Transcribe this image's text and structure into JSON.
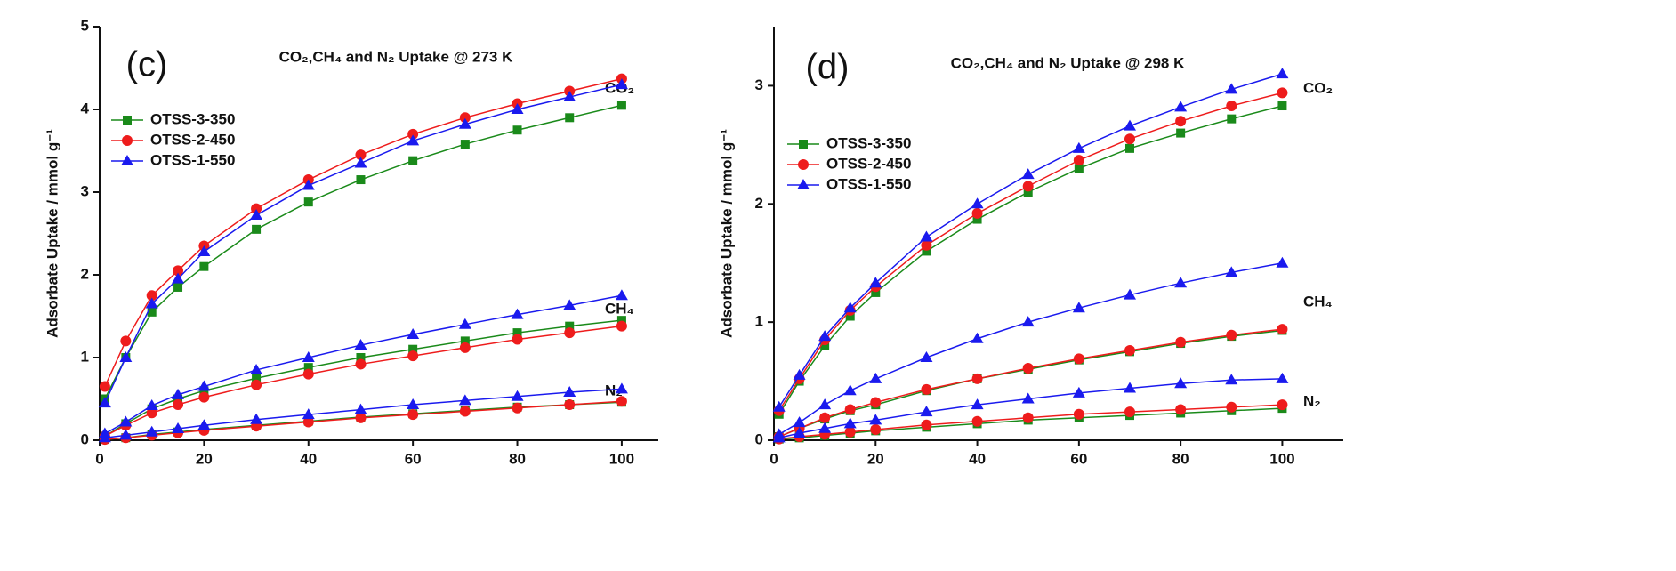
{
  "chart_data": [
    {
      "type": "line",
      "panel_label": "(c)",
      "title": "CO₂,CH₄ and N₂ Uptake @ 273 K",
      "ylabel": "Adsorbate Uptake / mmol g⁻¹",
      "gas_labels": [
        "CO₂",
        "CH₄",
        "N₂"
      ],
      "x": [
        1,
        5,
        10,
        15,
        20,
        30,
        40,
        50,
        60,
        70,
        80,
        90,
        100
      ],
      "xlim": [
        0,
        107
      ],
      "ylim": [
        0,
        5
      ],
      "xticks": [
        0,
        20,
        40,
        60,
        80,
        100
      ],
      "yticks": [
        0,
        1,
        2,
        3,
        4,
        5
      ],
      "series": [
        {
          "name": "OTSS-3-350",
          "color": "#1a8a1a",
          "marker": "square",
          "co2": [
            0.5,
            1.0,
            1.55,
            1.85,
            2.1,
            2.55,
            2.88,
            3.15,
            3.38,
            3.58,
            3.75,
            3.9,
            4.05
          ],
          "ch4": [
            0.05,
            0.2,
            0.38,
            0.5,
            0.6,
            0.75,
            0.88,
            1.0,
            1.1,
            1.2,
            1.3,
            1.38,
            1.45
          ],
          "n2": [
            0.01,
            0.03,
            0.07,
            0.1,
            0.13,
            0.18,
            0.23,
            0.28,
            0.32,
            0.36,
            0.4,
            0.43,
            0.46
          ]
        },
        {
          "name": "OTSS-2-450",
          "color": "#ee1c1c",
          "marker": "circle",
          "co2": [
            0.65,
            1.2,
            1.75,
            2.05,
            2.35,
            2.8,
            3.15,
            3.45,
            3.7,
            3.9,
            4.07,
            4.22,
            4.37
          ],
          "ch4": [
            0.05,
            0.18,
            0.33,
            0.43,
            0.52,
            0.67,
            0.8,
            0.92,
            1.02,
            1.12,
            1.22,
            1.3,
            1.38
          ],
          "n2": [
            0.01,
            0.03,
            0.06,
            0.09,
            0.12,
            0.17,
            0.22,
            0.27,
            0.31,
            0.35,
            0.39,
            0.43,
            0.47
          ]
        },
        {
          "name": "OTSS-1-550",
          "color": "#1a1aee",
          "marker": "triangle",
          "co2": [
            0.45,
            1.0,
            1.65,
            1.95,
            2.28,
            2.72,
            3.08,
            3.35,
            3.62,
            3.82,
            4.0,
            4.15,
            4.3
          ],
          "ch4": [
            0.08,
            0.22,
            0.42,
            0.55,
            0.65,
            0.85,
            1.0,
            1.15,
            1.28,
            1.4,
            1.52,
            1.63,
            1.75
          ],
          "n2": [
            0.03,
            0.06,
            0.1,
            0.14,
            0.18,
            0.25,
            0.31,
            0.37,
            0.43,
            0.48,
            0.53,
            0.58,
            0.62
          ]
        }
      ]
    },
    {
      "type": "line",
      "panel_label": "(d)",
      "title": "CO₂,CH₄ and N₂ Uptake @ 298 K",
      "ylabel": "Adsorbate Uptake / mmol g⁻¹",
      "gas_labels": [
        "CO₂",
        "CH₄",
        "N₂"
      ],
      "x": [
        1,
        5,
        10,
        15,
        20,
        30,
        40,
        50,
        60,
        70,
        80,
        90,
        100
      ],
      "xlim": [
        0,
        112
      ],
      "ylim": [
        0,
        3.5
      ],
      "xticks": [
        0,
        20,
        40,
        60,
        80,
        100
      ],
      "yticks": [
        0,
        1,
        2,
        3
      ],
      "series": [
        {
          "name": "OTSS-3-350",
          "color": "#1a8a1a",
          "marker": "square",
          "co2": [
            0.22,
            0.5,
            0.8,
            1.05,
            1.25,
            1.6,
            1.87,
            2.1,
            2.3,
            2.47,
            2.6,
            2.72,
            2.83
          ],
          "ch4": [
            0.03,
            0.1,
            0.18,
            0.25,
            0.3,
            0.42,
            0.52,
            0.6,
            0.68,
            0.75,
            0.82,
            0.88,
            0.93
          ],
          "n2": [
            0.01,
            0.02,
            0.04,
            0.06,
            0.08,
            0.11,
            0.14,
            0.17,
            0.19,
            0.21,
            0.23,
            0.25,
            0.27
          ]
        },
        {
          "name": "OTSS-2-450",
          "color": "#ee1c1c",
          "marker": "circle",
          "co2": [
            0.25,
            0.52,
            0.85,
            1.1,
            1.3,
            1.65,
            1.92,
            2.15,
            2.37,
            2.55,
            2.7,
            2.83,
            2.94
          ],
          "ch4": [
            0.03,
            0.1,
            0.19,
            0.26,
            0.32,
            0.43,
            0.52,
            0.61,
            0.69,
            0.76,
            0.83,
            0.89,
            0.94
          ],
          "n2": [
            0.01,
            0.03,
            0.05,
            0.07,
            0.09,
            0.13,
            0.16,
            0.19,
            0.22,
            0.24,
            0.26,
            0.28,
            0.3
          ]
        },
        {
          "name": "OTSS-1-550",
          "color": "#1a1aee",
          "marker": "triangle",
          "co2": [
            0.28,
            0.55,
            0.88,
            1.12,
            1.33,
            1.72,
            2.0,
            2.25,
            2.47,
            2.66,
            2.82,
            2.97,
            3.1
          ],
          "ch4": [
            0.05,
            0.15,
            0.3,
            0.42,
            0.52,
            0.7,
            0.86,
            1.0,
            1.12,
            1.23,
            1.33,
            1.42,
            1.5
          ],
          "n2": [
            0.02,
            0.06,
            0.1,
            0.14,
            0.17,
            0.24,
            0.3,
            0.35,
            0.4,
            0.44,
            0.48,
            0.51,
            0.52
          ]
        }
      ]
    }
  ]
}
